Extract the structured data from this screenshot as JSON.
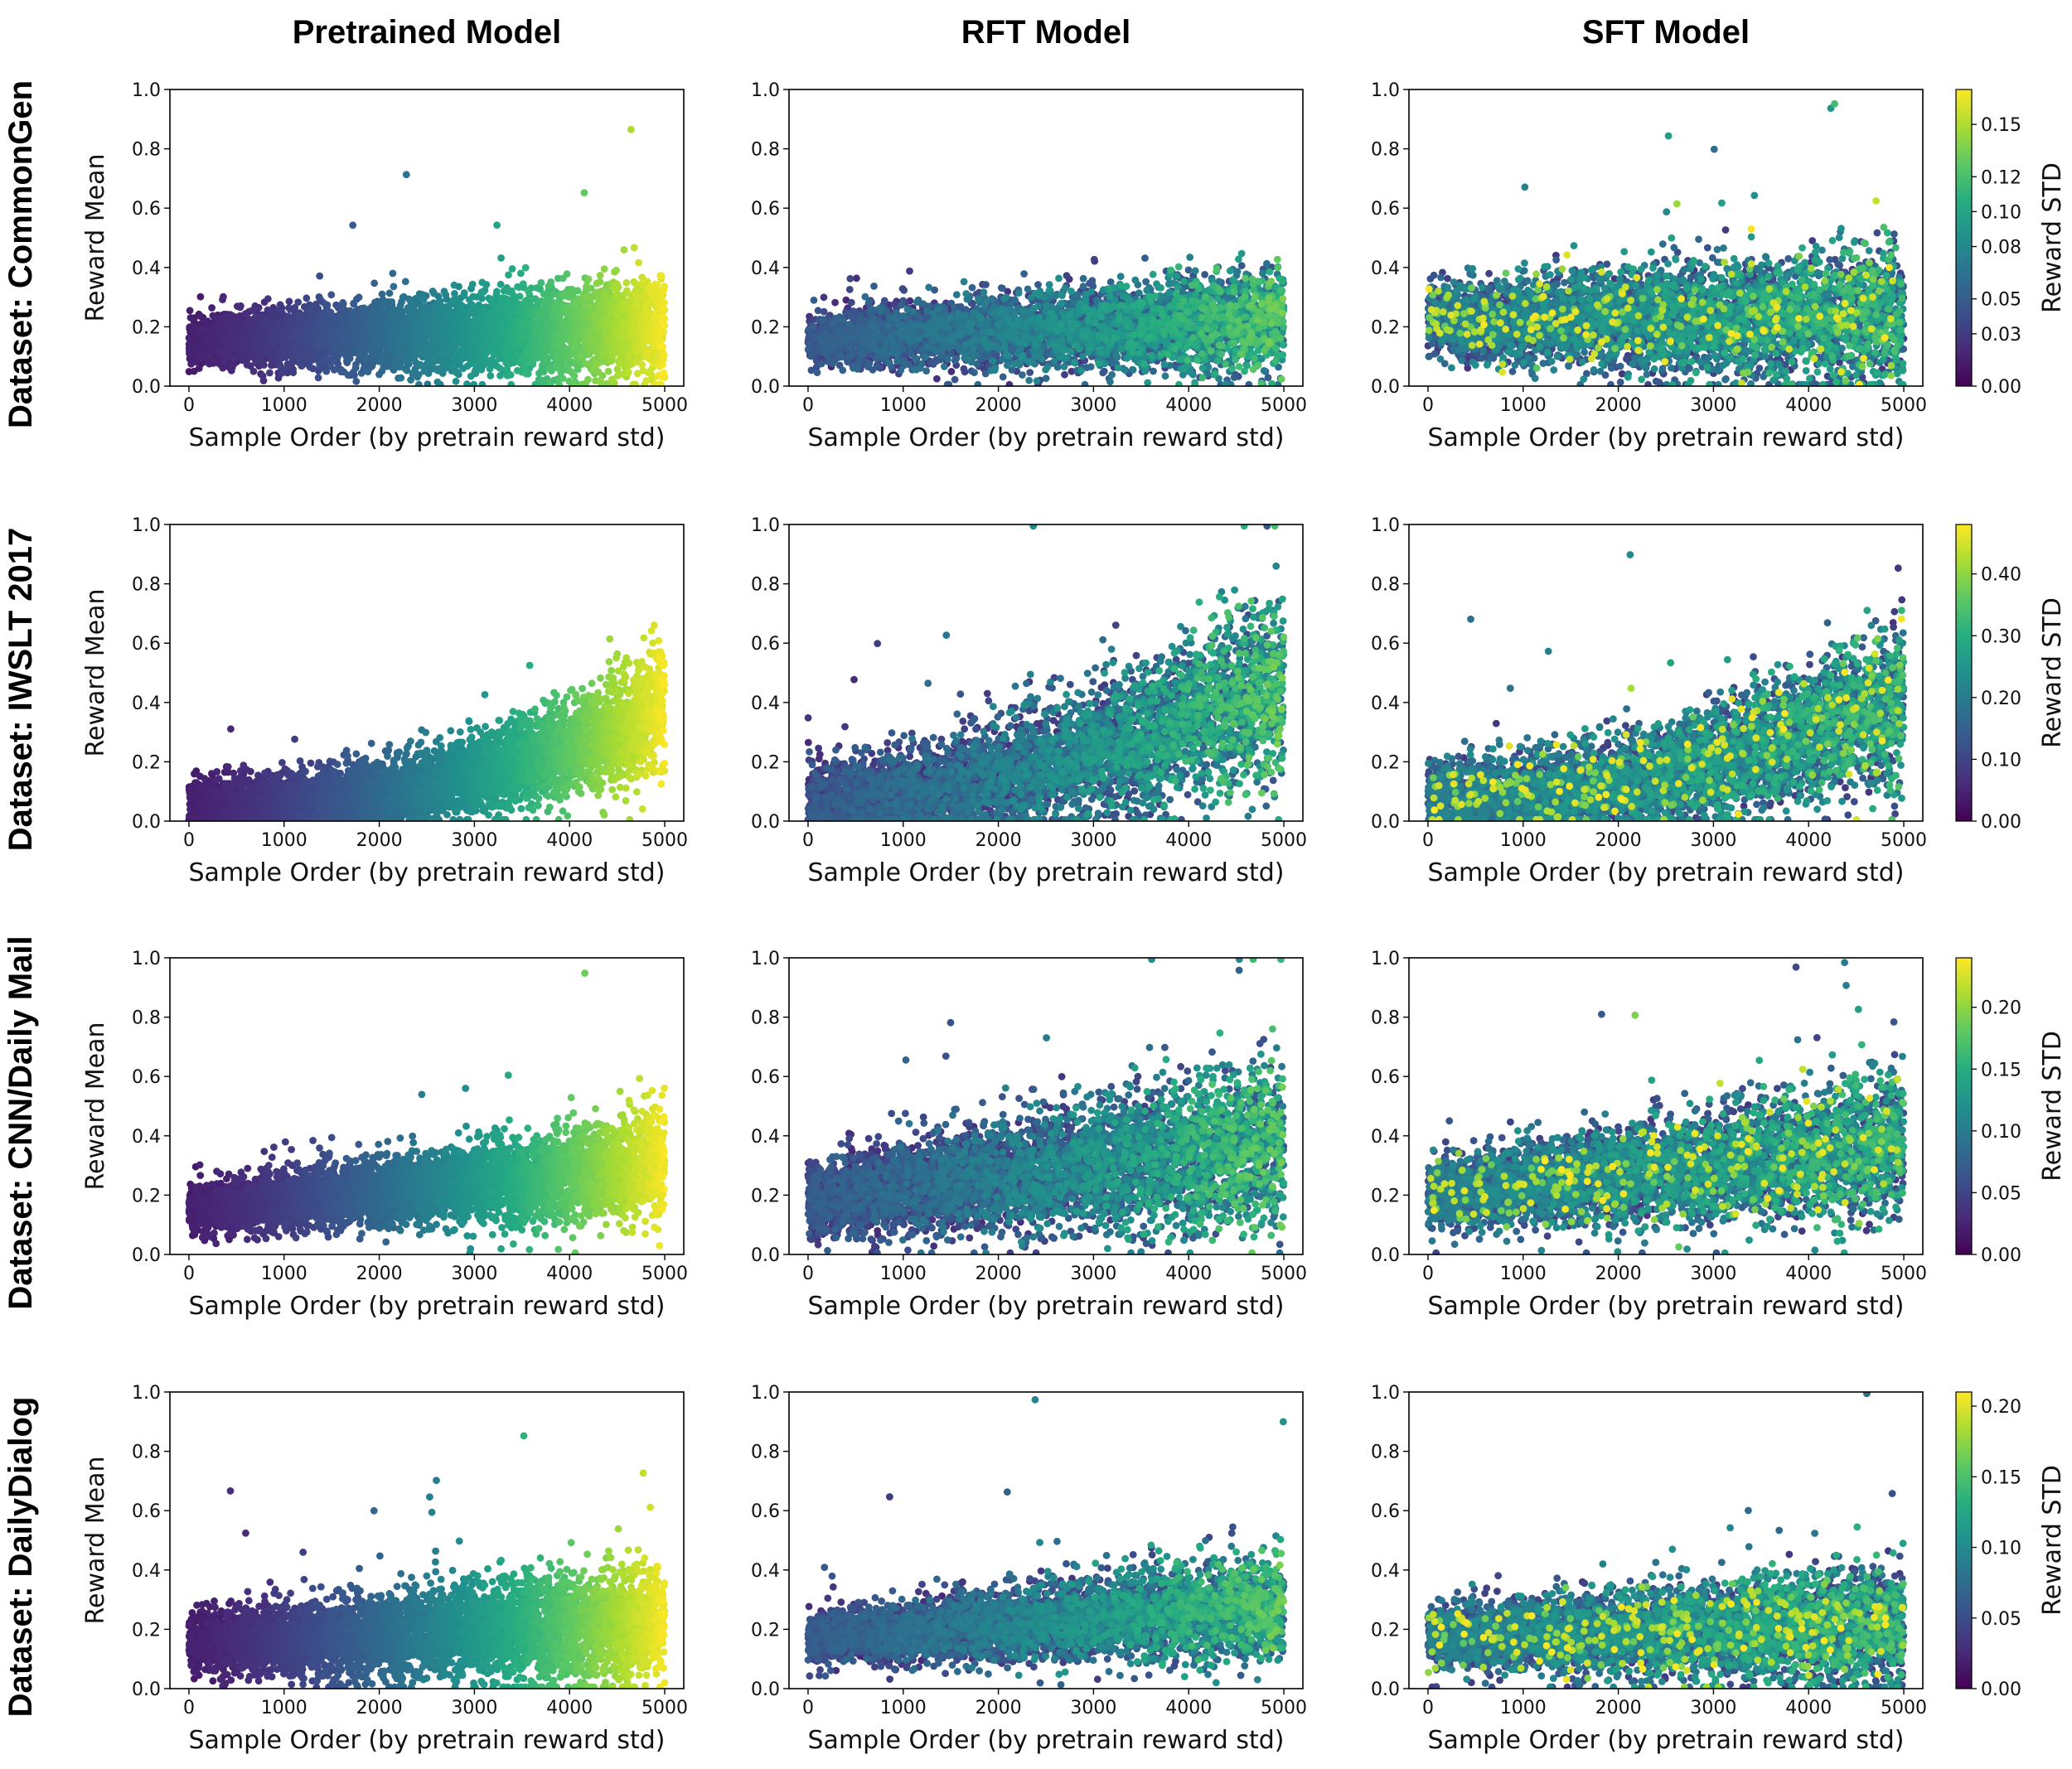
{
  "columns": [
    "Pretrained Model",
    "RFT Model",
    "SFT Model"
  ],
  "rows": [
    "Dataset: CommonGen",
    "Dataset: IWSLT 2017",
    "Dataset: CNN/Daily Mail",
    "Dataset: DailyDialog"
  ],
  "colors": {
    "viridis": [
      "#440154",
      "#472c7a",
      "#3b518b",
      "#2c718e",
      "#21908d",
      "#27ad81",
      "#5cc863",
      "#aadc32",
      "#fde725"
    ]
  },
  "chart_data": [
    {
      "type": "scatter",
      "dataset": "CommonGen",
      "model": "Pretrained Model",
      "xlabel": "Sample Order (by pretrain reward std)",
      "ylabel": "Reward Mean",
      "xlim": [
        -200,
        5200
      ],
      "ylim": [
        0,
        1
      ],
      "xticks": [
        "0",
        "1000",
        "2000",
        "3000",
        "4000",
        "5000"
      ],
      "yticks": [
        "0.0",
        "0.2",
        "0.4",
        "0.6",
        "0.8",
        "1.0"
      ],
      "n_points": 5000,
      "mean_start": 0.15,
      "mean_end": 0.2,
      "spread": 0.05,
      "std_max": 0.17,
      "mode": "pre"
    },
    {
      "type": "scatter",
      "dataset": "CommonGen",
      "model": "RFT Model",
      "xlabel": "Sample Order (by pretrain reward std)",
      "ylabel": "",
      "xlim": [
        -200,
        5200
      ],
      "ylim": [
        0,
        1
      ],
      "xticks": [
        "0",
        "1000",
        "2000",
        "3000",
        "4000",
        "5000"
      ],
      "yticks": [
        "0.0",
        "0.2",
        "0.4",
        "0.6",
        "0.8",
        "1.0"
      ],
      "n_points": 5000,
      "mean_start": 0.16,
      "mean_end": 0.22,
      "spread": 0.05,
      "std_max": 0.17,
      "mode": "rft"
    },
    {
      "type": "scatter",
      "dataset": "CommonGen",
      "model": "SFT Model",
      "xlabel": "Sample Order (by pretrain reward std)",
      "ylabel": "",
      "xlim": [
        -200,
        5200
      ],
      "ylim": [
        0,
        1
      ],
      "xticks": [
        "0",
        "1000",
        "2000",
        "3000",
        "4000",
        "5000"
      ],
      "yticks": [
        "0.0",
        "0.2",
        "0.4",
        "0.6",
        "0.8",
        "1.0"
      ],
      "n_points": 5000,
      "mean_start": 0.22,
      "mean_end": 0.24,
      "spread": 0.07,
      "std_max": 0.17,
      "mode": "sft",
      "colorbar": {
        "label": "Reward STD",
        "ticks": [
          0.0,
          0.03,
          0.05,
          0.08,
          0.1,
          0.12,
          0.15
        ],
        "tick_labels": [
          "0.00",
          "0.03",
          "0.05",
          "0.08",
          "0.10",
          "0.12",
          "0.15"
        ],
        "vmin": 0,
        "vmax": 0.17
      }
    },
    {
      "type": "scatter",
      "dataset": "IWSLT 2017",
      "model": "Pretrained Model",
      "xlabel": "Sample Order (by pretrain reward std)",
      "ylabel": "Reward Mean",
      "xlim": [
        -200,
        5200
      ],
      "ylim": [
        0,
        1
      ],
      "xticks": [
        "0",
        "1000",
        "2000",
        "3000",
        "4000",
        "5000"
      ],
      "yticks": [
        "0.0",
        "0.2",
        "0.4",
        "0.6",
        "0.8",
        "1.0"
      ],
      "n_points": 5000,
      "mean_start": 0.05,
      "mean_end": 0.38,
      "spread": 0.06,
      "std_max": 0.48,
      "mode": "pre",
      "curve": 2.2
    },
    {
      "type": "scatter",
      "dataset": "IWSLT 2017",
      "model": "RFT Model",
      "xlabel": "Sample Order (by pretrain reward std)",
      "ylabel": "",
      "xlim": [
        -200,
        5200
      ],
      "ylim": [
        0,
        1
      ],
      "xticks": [
        "0",
        "1000",
        "2000",
        "3000",
        "4000",
        "5000"
      ],
      "yticks": [
        "0.0",
        "0.2",
        "0.4",
        "0.6",
        "0.8",
        "1.0"
      ],
      "n_points": 5000,
      "mean_start": 0.06,
      "mean_end": 0.45,
      "spread": 0.09,
      "std_max": 0.48,
      "mode": "rft",
      "curve": 1.6
    },
    {
      "type": "scatter",
      "dataset": "IWSLT 2017",
      "model": "SFT Model",
      "xlabel": "Sample Order (by pretrain reward std)",
      "ylabel": "",
      "xlim": [
        -200,
        5200
      ],
      "ylim": [
        0,
        1
      ],
      "xticks": [
        "0",
        "1000",
        "2000",
        "3000",
        "4000",
        "5000"
      ],
      "yticks": [
        "0.0",
        "0.2",
        "0.4",
        "0.6",
        "0.8",
        "1.0"
      ],
      "n_points": 5000,
      "mean_start": 0.07,
      "mean_end": 0.4,
      "spread": 0.08,
      "std_max": 0.48,
      "mode": "sft",
      "curve": 1.8,
      "colorbar": {
        "label": "Reward STD",
        "ticks": [
          0.0,
          0.1,
          0.2,
          0.3,
          0.4
        ],
        "tick_labels": [
          "0.00",
          "0.10",
          "0.20",
          "0.30",
          "0.40"
        ],
        "vmin": 0,
        "vmax": 0.48
      }
    },
    {
      "type": "scatter",
      "dataset": "CNN/Daily Mail",
      "model": "Pretrained Model",
      "xlabel": "Sample Order (by pretrain reward std)",
      "ylabel": "Reward Mean",
      "xlim": [
        -200,
        5200
      ],
      "ylim": [
        0,
        1
      ],
      "xticks": [
        "0",
        "1000",
        "2000",
        "3000",
        "4000",
        "5000"
      ],
      "yticks": [
        "0.0",
        "0.2",
        "0.4",
        "0.6",
        "0.8",
        "1.0"
      ],
      "n_points": 5000,
      "mean_start": 0.15,
      "mean_end": 0.3,
      "spread": 0.05,
      "std_max": 0.24,
      "mode": "pre"
    },
    {
      "type": "scatter",
      "dataset": "CNN/Daily Mail",
      "model": "RFT Model",
      "xlabel": "Sample Order (by pretrain reward std)",
      "ylabel": "",
      "xlim": [
        -200,
        5200
      ],
      "ylim": [
        0,
        1
      ],
      "xticks": [
        "0",
        "1000",
        "2000",
        "3000",
        "4000",
        "5000"
      ],
      "yticks": [
        "0.0",
        "0.2",
        "0.4",
        "0.6",
        "0.8",
        "1.0"
      ],
      "n_points": 5000,
      "mean_start": 0.18,
      "mean_end": 0.38,
      "spread": 0.08,
      "std_max": 0.24,
      "mode": "rft"
    },
    {
      "type": "scatter",
      "dataset": "CNN/Daily Mail",
      "model": "SFT Model",
      "xlabel": "Sample Order (by pretrain reward std)",
      "ylabel": "",
      "xlim": [
        -200,
        5200
      ],
      "ylim": [
        0,
        1
      ],
      "xticks": [
        "0",
        "1000",
        "2000",
        "3000",
        "4000",
        "5000"
      ],
      "yticks": [
        "0.0",
        "0.2",
        "0.4",
        "0.6",
        "0.8",
        "1.0"
      ],
      "n_points": 5000,
      "mean_start": 0.2,
      "mean_end": 0.37,
      "spread": 0.07,
      "std_max": 0.24,
      "mode": "sft",
      "colorbar": {
        "label": "Reward STD",
        "ticks": [
          0.0,
          0.05,
          0.1,
          0.15,
          0.2
        ],
        "tick_labels": [
          "0.00",
          "0.05",
          "0.10",
          "0.15",
          "0.20"
        ],
        "vmin": 0,
        "vmax": 0.24
      }
    },
    {
      "type": "scatter",
      "dataset": "DailyDialog",
      "model": "Pretrained Model",
      "xlabel": "Sample Order (by pretrain reward std)",
      "ylabel": "Reward Mean",
      "xlim": [
        -200,
        5200
      ],
      "ylim": [
        0,
        1
      ],
      "xticks": [
        "0",
        "1000",
        "2000",
        "3000",
        "4000",
        "5000"
      ],
      "yticks": [
        "0.0",
        "0.2",
        "0.4",
        "0.6",
        "0.8",
        "1.0"
      ],
      "n_points": 5000,
      "mean_start": 0.15,
      "mean_end": 0.22,
      "spread": 0.06,
      "std_max": 0.21,
      "mode": "pre"
    },
    {
      "type": "scatter",
      "dataset": "DailyDialog",
      "model": "RFT Model",
      "xlabel": "Sample Order (by pretrain reward std)",
      "ylabel": "",
      "xlim": [
        -200,
        5200
      ],
      "ylim": [
        0,
        1
      ],
      "xticks": [
        "0",
        "1000",
        "2000",
        "3000",
        "4000",
        "5000"
      ],
      "yticks": [
        "0.0",
        "0.2",
        "0.4",
        "0.6",
        "0.8",
        "1.0"
      ],
      "n_points": 5000,
      "mean_start": 0.17,
      "mean_end": 0.28,
      "spread": 0.05,
      "std_max": 0.21,
      "mode": "rft"
    },
    {
      "type": "scatter",
      "dataset": "DailyDialog",
      "model": "SFT Model",
      "xlabel": "Sample Order (by pretrain reward std)",
      "ylabel": "",
      "xlim": [
        -200,
        5200
      ],
      "ylim": [
        0,
        1
      ],
      "xticks": [
        "0",
        "1000",
        "2000",
        "3000",
        "4000",
        "5000"
      ],
      "yticks": [
        "0.0",
        "0.2",
        "0.4",
        "0.6",
        "0.8",
        "1.0"
      ],
      "n_points": 5000,
      "mean_start": 0.17,
      "mean_end": 0.22,
      "spread": 0.06,
      "std_max": 0.21,
      "mode": "sft",
      "colorbar": {
        "label": "Reward STD",
        "ticks": [
          0.0,
          0.05,
          0.1,
          0.15,
          0.2
        ],
        "tick_labels": [
          "0.00",
          "0.05",
          "0.10",
          "0.15",
          "0.20"
        ],
        "vmin": 0,
        "vmax": 0.21
      }
    }
  ]
}
